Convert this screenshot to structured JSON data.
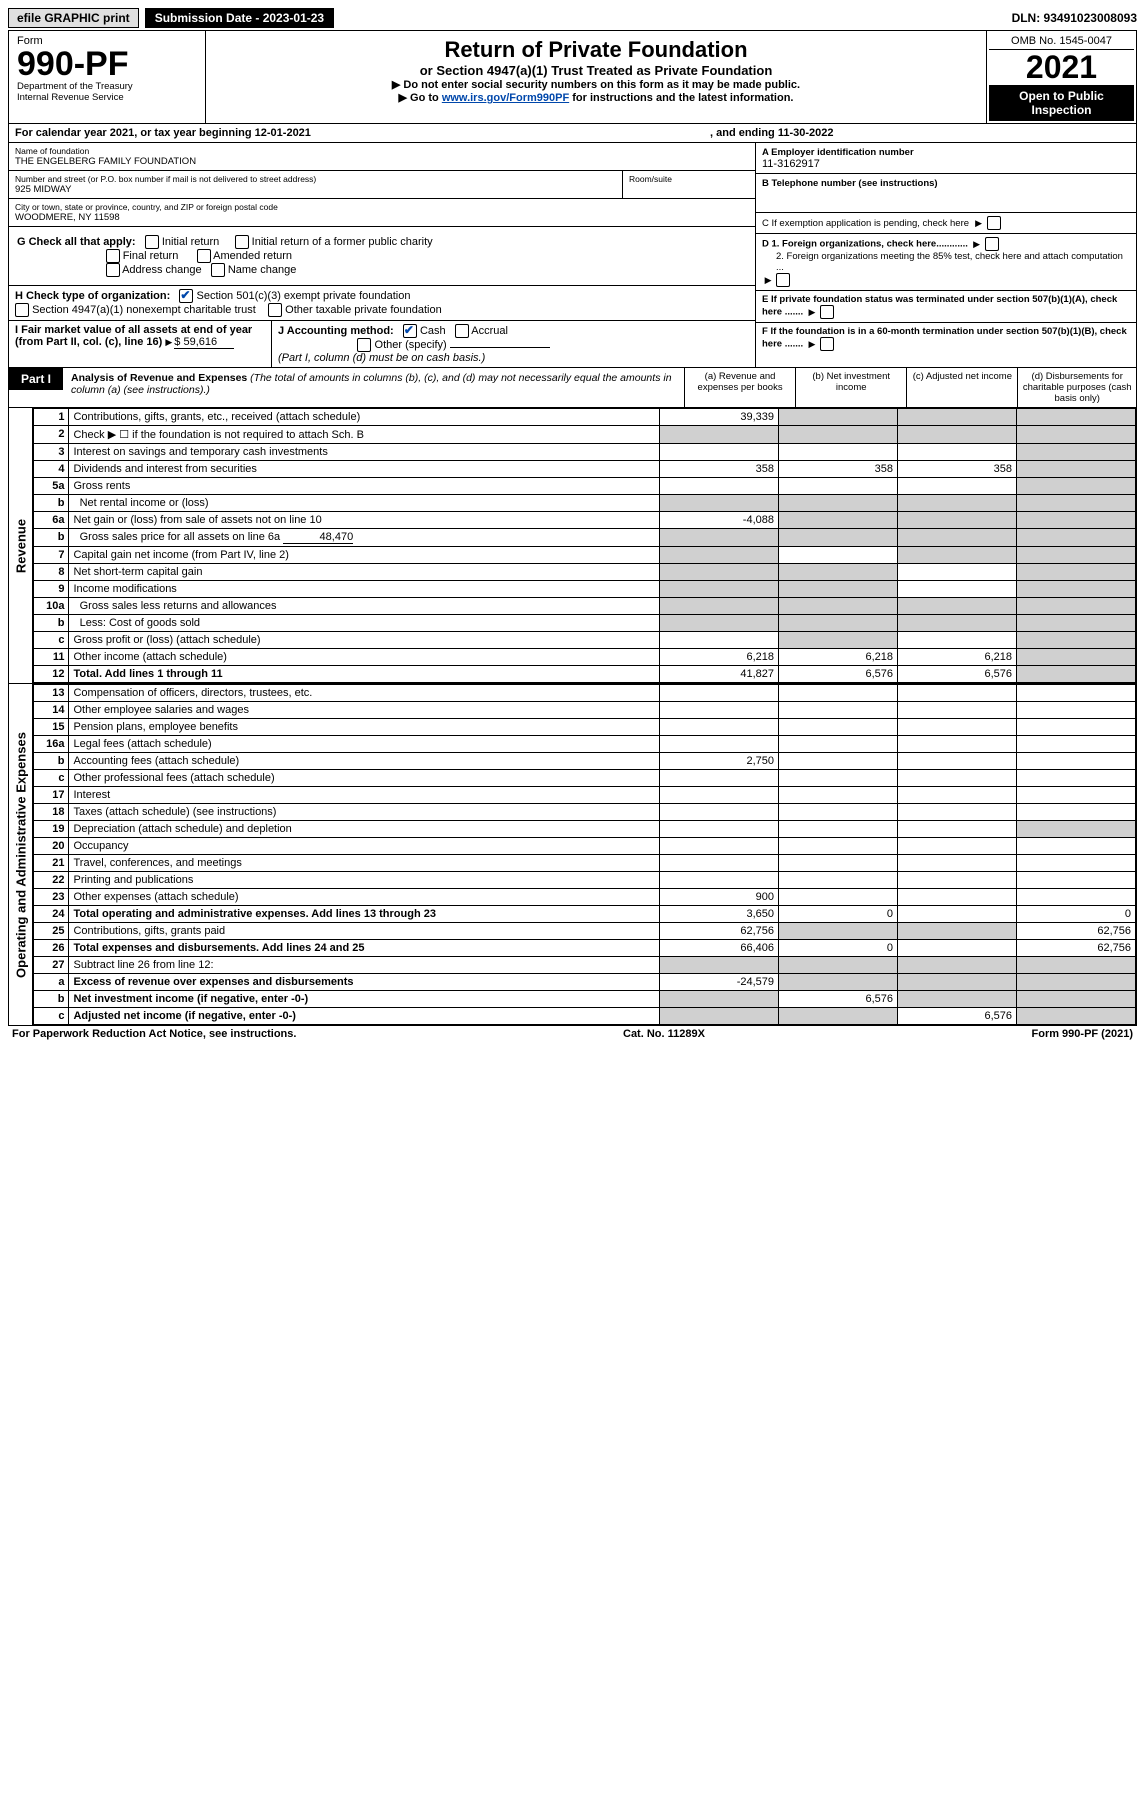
{
  "topbar": {
    "efile": "efile GRAPHIC print",
    "submission_label": "Submission Date - 2023-01-23",
    "dln": "DLN: 93491023008093"
  },
  "header": {
    "form_label": "Form",
    "form_number": "990-PF",
    "dept1": "Department of the Treasury",
    "dept2": "Internal Revenue Service",
    "title": "Return of Private Foundation",
    "subtitle": "or Section 4947(a)(1) Trust Treated as Private Foundation",
    "note1": "▶ Do not enter social security numbers on this form as it may be made public.",
    "note2_pre": "▶ Go to ",
    "note2_link": "www.irs.gov/Form990PF",
    "note2_post": " for instructions and the latest information.",
    "omb": "OMB No. 1545-0047",
    "year": "2021",
    "open": "Open to Public Inspection"
  },
  "calendar": {
    "line": "For calendar year 2021, or tax year beginning 12-01-2021",
    "ending": ", and ending 11-30-2022"
  },
  "entity": {
    "name_label": "Name of foundation",
    "name": "THE ENGELBERG FAMILY FOUNDATION",
    "addr_label": "Number and street (or P.O. box number if mail is not delivered to street address)",
    "addr": "925 MIDWAY",
    "room_label": "Room/suite",
    "city_label": "City or town, state or province, country, and ZIP or foreign postal code",
    "city": "WOODMERE, NY  11598",
    "A_label": "A Employer identification number",
    "A_val": "11-3162917",
    "B_label": "B Telephone number (see instructions)",
    "C_label": "C If exemption application is pending, check here",
    "D1": "D 1. Foreign organizations, check here............",
    "D2": "2. Foreign organizations meeting the 85% test, check here and attach computation ...",
    "E": "E  If private foundation status was terminated under section 507(b)(1)(A), check here .......",
    "F": "F  If the foundation is in a 60-month termination under section 507(b)(1)(B), check here .......",
    "G_label": "G Check all that apply:",
    "G_opts": {
      "initial": "Initial return",
      "initial_former": "Initial return of a former public charity",
      "final": "Final return",
      "amended": "Amended return",
      "address": "Address change",
      "name": "Name change"
    },
    "H_label": "H Check type of organization:",
    "H_opts": {
      "s501": "Section 501(c)(3) exempt private foundation",
      "s4947": "Section 4947(a)(1) nonexempt charitable trust",
      "other_tax": "Other taxable private foundation"
    },
    "I_label": "I Fair market value of all assets at end of year (from Part II, col. (c), line 16)",
    "I_val": "$  59,616",
    "J_label": "J Accounting method:",
    "J_cash": "Cash",
    "J_accrual": "Accrual",
    "J_other": "Other (specify)",
    "J_note": "(Part I, column (d) must be on cash basis.)"
  },
  "part1": {
    "tag": "Part I",
    "title": "Analysis of Revenue and Expenses",
    "title_note": "(The total of amounts in columns (b), (c), and (d) may not necessarily equal the amounts in column (a) (see instructions).)",
    "col_a": "(a)  Revenue and expenses per books",
    "col_b": "(b)  Net investment income",
    "col_c": "(c)  Adjusted net income",
    "col_d": "(d)  Disbursements for charitable purposes (cash basis only)"
  },
  "side_labels": {
    "revenue": "Revenue",
    "expenses": "Operating and Administrative Expenses"
  },
  "lines": [
    {
      "n": "1",
      "desc": "Contributions, gifts, grants, etc., received (attach schedule)",
      "a": "39,339",
      "b": "",
      "c": "",
      "d": "",
      "shade_b": true,
      "shade_c": true,
      "shade_d": true
    },
    {
      "n": "2",
      "desc": "Check ▶ ☐ if the foundation is not required to attach Sch. B",
      "a": "",
      "b": "",
      "c": "",
      "d": "",
      "shade_a": true,
      "shade_b": true,
      "shade_c": true,
      "shade_d": true
    },
    {
      "n": "3",
      "desc": "Interest on savings and temporary cash investments",
      "a": "",
      "b": "",
      "c": "",
      "d": "",
      "shade_d": true
    },
    {
      "n": "4",
      "desc": "Dividends and interest from securities",
      "a": "358",
      "b": "358",
      "c": "358",
      "d": "",
      "shade_d": true
    },
    {
      "n": "5a",
      "desc": "Gross rents",
      "a": "",
      "b": "",
      "c": "",
      "d": "",
      "shade_d": true
    },
    {
      "n": "b",
      "desc": "Net rental income or (loss)",
      "a": "",
      "b": "",
      "c": "",
      "d": "",
      "shade_a": true,
      "shade_b": true,
      "shade_c": true,
      "shade_d": true,
      "inset": true
    },
    {
      "n": "6a",
      "desc": "Net gain or (loss) from sale of assets not on line 10",
      "a": "-4,088",
      "b": "",
      "c": "",
      "d": "",
      "shade_b": true,
      "shade_c": true,
      "shade_d": true
    },
    {
      "n": "b",
      "desc": "Gross sales price for all assets on line 6a",
      "a": "",
      "b": "",
      "c": "",
      "d": "",
      "shade_a": true,
      "shade_b": true,
      "shade_c": true,
      "shade_d": true,
      "inset": true,
      "subval": "48,470"
    },
    {
      "n": "7",
      "desc": "Capital gain net income (from Part IV, line 2)",
      "a": "",
      "b": "",
      "c": "",
      "d": "",
      "shade_a": true,
      "shade_c": true,
      "shade_d": true
    },
    {
      "n": "8",
      "desc": "Net short-term capital gain",
      "a": "",
      "b": "",
      "c": "",
      "d": "",
      "shade_a": true,
      "shade_b": true,
      "shade_d": true
    },
    {
      "n": "9",
      "desc": "Income modifications",
      "a": "",
      "b": "",
      "c": "",
      "d": "",
      "shade_a": true,
      "shade_b": true,
      "shade_d": true
    },
    {
      "n": "10a",
      "desc": "Gross sales less returns and allowances",
      "a": "",
      "b": "",
      "c": "",
      "d": "",
      "shade_a": true,
      "shade_b": true,
      "shade_c": true,
      "shade_d": true,
      "inset": true
    },
    {
      "n": "b",
      "desc": "Less: Cost of goods sold",
      "a": "",
      "b": "",
      "c": "",
      "d": "",
      "shade_a": true,
      "shade_b": true,
      "shade_c": true,
      "shade_d": true,
      "inset": true
    },
    {
      "n": "c",
      "desc": "Gross profit or (loss) (attach schedule)",
      "a": "",
      "b": "",
      "c": "",
      "d": "",
      "shade_b": true,
      "shade_d": true
    },
    {
      "n": "11",
      "desc": "Other income (attach schedule)",
      "a": "6,218",
      "b": "6,218",
      "c": "6,218",
      "d": "",
      "shade_d": true
    },
    {
      "n": "12",
      "desc": "Total. Add lines 1 through 11",
      "a": "41,827",
      "b": "6,576",
      "c": "6,576",
      "d": "",
      "bold": true,
      "shade_d": true
    }
  ],
  "exp_lines": [
    {
      "n": "13",
      "desc": "Compensation of officers, directors, trustees, etc.",
      "a": "",
      "b": "",
      "c": "",
      "d": ""
    },
    {
      "n": "14",
      "desc": "Other employee salaries and wages",
      "a": "",
      "b": "",
      "c": "",
      "d": ""
    },
    {
      "n": "15",
      "desc": "Pension plans, employee benefits",
      "a": "",
      "b": "",
      "c": "",
      "d": ""
    },
    {
      "n": "16a",
      "desc": "Legal fees (attach schedule)",
      "a": "",
      "b": "",
      "c": "",
      "d": ""
    },
    {
      "n": "b",
      "desc": "Accounting fees (attach schedule)",
      "a": "2,750",
      "b": "",
      "c": "",
      "d": ""
    },
    {
      "n": "c",
      "desc": "Other professional fees (attach schedule)",
      "a": "",
      "b": "",
      "c": "",
      "d": ""
    },
    {
      "n": "17",
      "desc": "Interest",
      "a": "",
      "b": "",
      "c": "",
      "d": ""
    },
    {
      "n": "18",
      "desc": "Taxes (attach schedule) (see instructions)",
      "a": "",
      "b": "",
      "c": "",
      "d": ""
    },
    {
      "n": "19",
      "desc": "Depreciation (attach schedule) and depletion",
      "a": "",
      "b": "",
      "c": "",
      "d": "",
      "shade_d": true
    },
    {
      "n": "20",
      "desc": "Occupancy",
      "a": "",
      "b": "",
      "c": "",
      "d": ""
    },
    {
      "n": "21",
      "desc": "Travel, conferences, and meetings",
      "a": "",
      "b": "",
      "c": "",
      "d": ""
    },
    {
      "n": "22",
      "desc": "Printing and publications",
      "a": "",
      "b": "",
      "c": "",
      "d": ""
    },
    {
      "n": "23",
      "desc": "Other expenses (attach schedule)",
      "a": "900",
      "b": "",
      "c": "",
      "d": ""
    },
    {
      "n": "24",
      "desc": "Total operating and administrative expenses. Add lines 13 through 23",
      "a": "3,650",
      "b": "0",
      "c": "",
      "d": "0",
      "bold": true
    },
    {
      "n": "25",
      "desc": "Contributions, gifts, grants paid",
      "a": "62,756",
      "b": "",
      "c": "",
      "d": "62,756",
      "shade_b": true,
      "shade_c": true
    },
    {
      "n": "26",
      "desc": "Total expenses and disbursements. Add lines 24 and 25",
      "a": "66,406",
      "b": "0",
      "c": "",
      "d": "62,756",
      "bold": true
    },
    {
      "n": "27",
      "desc": "Subtract line 26 from line 12:",
      "a": "",
      "b": "",
      "c": "",
      "d": "",
      "shade_a": true,
      "shade_b": true,
      "shade_c": true,
      "shade_d": true
    },
    {
      "n": "a",
      "desc": "Excess of revenue over expenses and disbursements",
      "a": "-24,579",
      "b": "",
      "c": "",
      "d": "",
      "bold": true,
      "shade_b": true,
      "shade_c": true,
      "shade_d": true
    },
    {
      "n": "b",
      "desc": "Net investment income (if negative, enter -0-)",
      "a": "",
      "b": "6,576",
      "c": "",
      "d": "",
      "bold": true,
      "shade_a": true,
      "shade_c": true,
      "shade_d": true
    },
    {
      "n": "c",
      "desc": "Adjusted net income (if negative, enter -0-)",
      "a": "",
      "b": "",
      "c": "6,576",
      "d": "",
      "bold": true,
      "shade_a": true,
      "shade_b": true,
      "shade_d": true
    }
  ],
  "footer": {
    "left": "For Paperwork Reduction Act Notice, see instructions.",
    "mid": "Cat. No. 11289X",
    "right": "Form 990-PF (2021)"
  }
}
